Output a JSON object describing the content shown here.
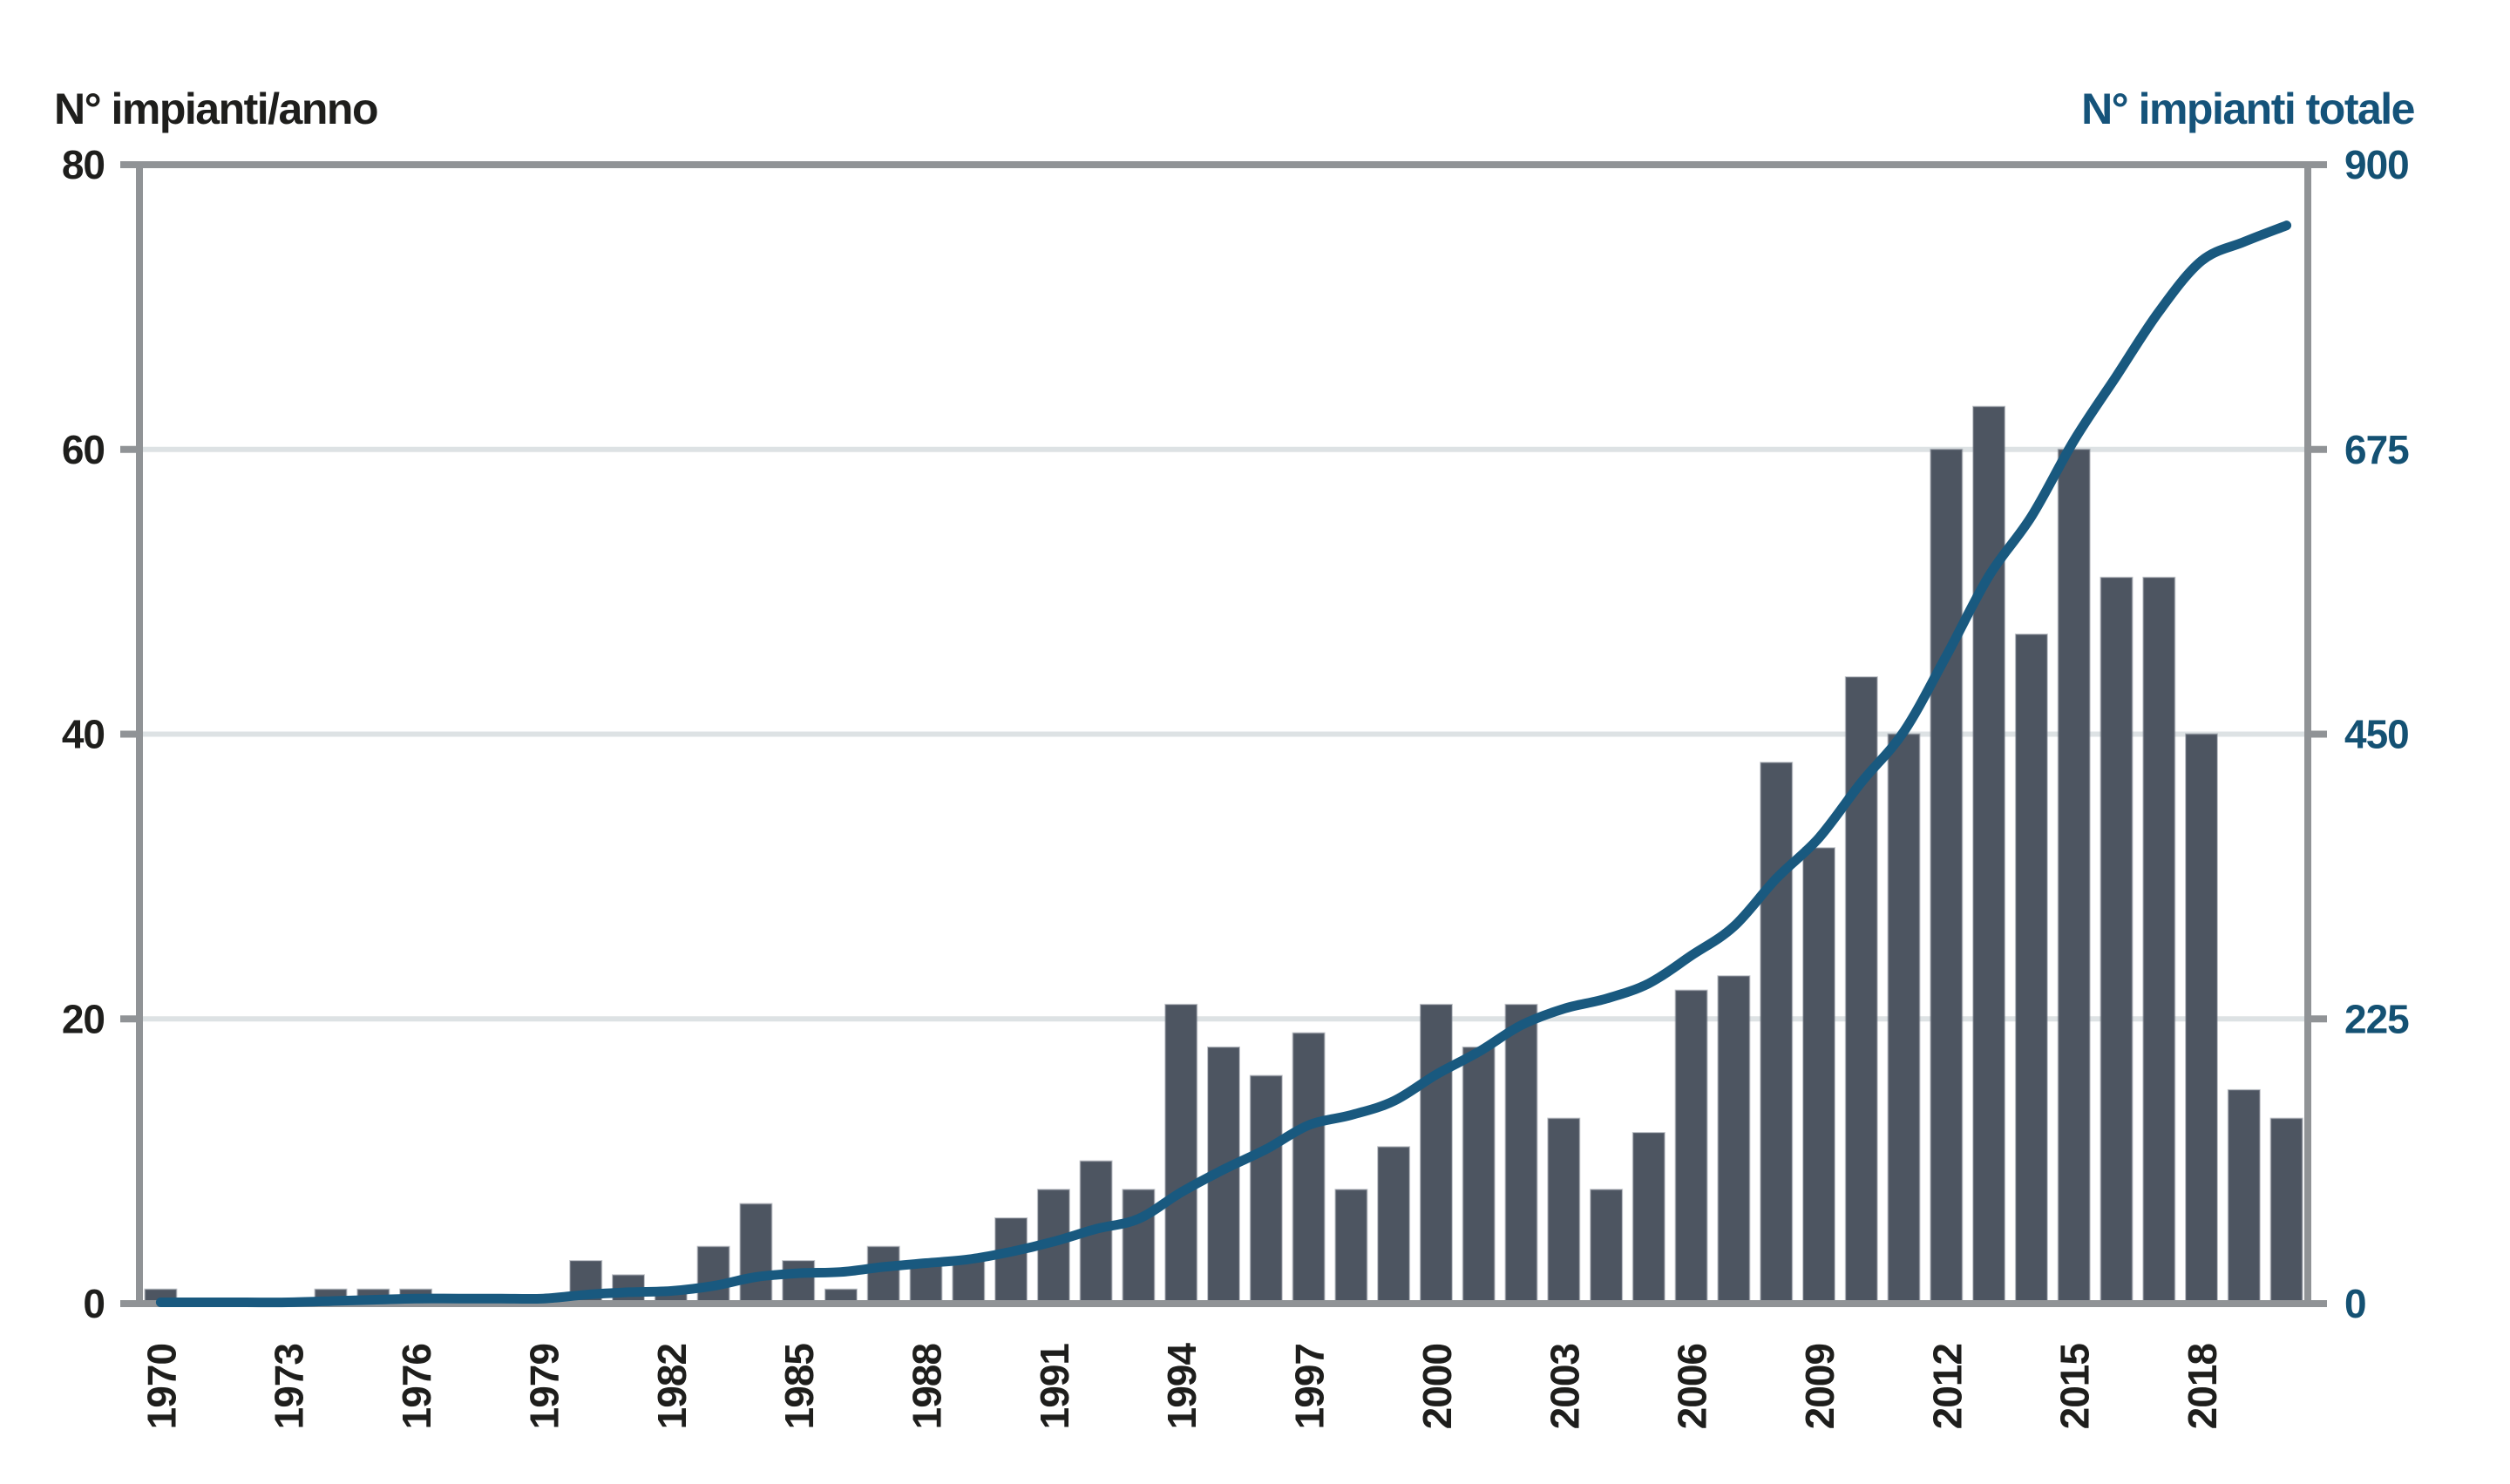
{
  "titles": {
    "left": "N° impianti/anno",
    "right": "N° impianti totale"
  },
  "chart_data": {
    "type": "bar",
    "combo": "bar+line dual-axis",
    "title": "",
    "xlabel": "",
    "x": [
      1970,
      1971,
      1972,
      1973,
      1974,
      1975,
      1976,
      1977,
      1978,
      1979,
      1980,
      1981,
      1982,
      1983,
      1984,
      1985,
      1986,
      1987,
      1988,
      1989,
      1990,
      1991,
      1992,
      1993,
      1994,
      1995,
      1996,
      1997,
      1998,
      1999,
      2000,
      2001,
      2002,
      2003,
      2004,
      2005,
      2006,
      2007,
      2008,
      2009,
      2010,
      2011,
      2012,
      2013,
      2014,
      2015,
      2016,
      2017,
      2018,
      2019,
      2020
    ],
    "series": [
      {
        "name": "N° impianti/anno",
        "type": "bar",
        "axis": "left",
        "color": "#4d5561",
        "values": [
          1,
          0,
          0,
          0,
          1,
          1,
          1,
          0,
          0,
          0,
          3,
          2,
          1,
          4,
          7,
          3,
          1,
          4,
          3,
          3,
          6,
          8,
          10,
          8,
          21,
          18,
          16,
          19,
          8,
          11,
          21,
          18,
          21,
          13,
          8,
          12,
          22,
          23,
          38,
          32,
          44,
          40,
          60,
          63,
          47,
          60,
          51,
          51,
          40,
          15,
          13
        ]
      },
      {
        "name": "N° impianti totale",
        "type": "line",
        "axis": "right",
        "color": "#19597f",
        "values": [
          1,
          1,
          1,
          1,
          2,
          3,
          4,
          4,
          4,
          4,
          7,
          9,
          10,
          14,
          21,
          24,
          25,
          29,
          32,
          35,
          41,
          49,
          59,
          67,
          88,
          106,
          122,
          141,
          149,
          160,
          181,
          199,
          220,
          233,
          241,
          253,
          275,
          298,
          336,
          368,
          412,
          452,
          512,
          575,
          622,
          682,
          733,
          784,
          824,
          839,
          852
        ]
      }
    ],
    "left_axis": {
      "title": "N° impianti/anno",
      "ticks": [
        0,
        20,
        40,
        60,
        80
      ],
      "range": [
        0,
        80
      ]
    },
    "right_axis": {
      "title": "N° impianti totale",
      "ticks": [
        0,
        225,
        450,
        675,
        900
      ],
      "range": [
        0,
        900
      ]
    },
    "x_axis": {
      "tick_labels": [
        "1970",
        "1973",
        "1976",
        "1979",
        "1982",
        "1985",
        "1988",
        "1991",
        "1994",
        "1997",
        "2000",
        "2003",
        "2006",
        "2009",
        "2012",
        "2015",
        "2018"
      ],
      "label_interval_years": 3,
      "range": [
        1970,
        2020
      ]
    },
    "grid": {
      "show": true,
      "lines_at_left_values": [
        20,
        40,
        60
      ]
    },
    "legend": "none",
    "colors": {
      "background": "#ffffff",
      "bar": "#4d5561",
      "bar_edge": "#79808c",
      "line": "#19597f",
      "frame": "#909396",
      "gridline": "#dde2e4",
      "left_text": "#1e1e1c",
      "right_text": "#145173"
    }
  }
}
